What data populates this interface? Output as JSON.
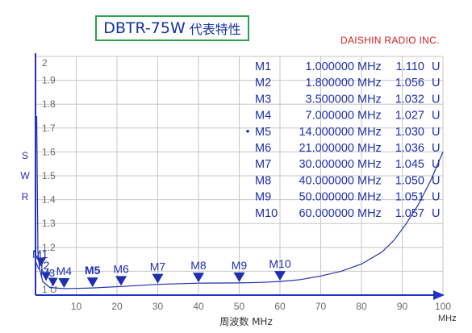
{
  "title": {
    "model": "DBTR-75W",
    "subtitle": "代表特性"
  },
  "company": "DAISHIN RADIO INC.",
  "chart_data": {
    "type": "line",
    "ylabel": [
      "S",
      "W",
      "R"
    ],
    "xlabel": "周波数 MHz",
    "x_unit": "MHz",
    "xlim": [
      0,
      100
    ],
    "ylim": [
      1.0,
      2.0
    ],
    "x_ticks": [
      "10",
      "20",
      "30",
      "40",
      "50",
      "60",
      "70",
      "80",
      "90",
      "100"
    ],
    "y_ticks": [
      "1.9",
      "1.8",
      "1.7",
      "1.6",
      "1.5",
      "1.4",
      "1.3",
      "1.2"
    ],
    "y_top_label": "2",
    "y_bottom_label": "1 U",
    "grid": true,
    "series": [
      {
        "x": [
          0.3,
          0.6,
          1,
          1.8,
          3.5,
          7,
          10,
          14,
          21,
          30,
          40,
          50,
          55,
          60,
          65,
          70,
          75,
          80,
          85,
          88,
          91,
          94,
          97,
          100
        ],
        "y": [
          1.75,
          1.18,
          1.11,
          1.056,
          1.032,
          1.027,
          1.028,
          1.03,
          1.036,
          1.045,
          1.05,
          1.051,
          1.053,
          1.057,
          1.065,
          1.08,
          1.1,
          1.13,
          1.18,
          1.23,
          1.3,
          1.38,
          1.48,
          1.6
        ]
      }
    ],
    "markers": [
      {
        "name": "M1",
        "freq": "1.000000",
        "unit": "MHz",
        "swr": "1.110",
        "swr_unit": "U",
        "x": 1.0,
        "y": 1.11,
        "active": false
      },
      {
        "name": "M2",
        "freq": "1.800000",
        "unit": "MHz",
        "swr": "1.056",
        "swr_unit": "U",
        "x": 1.8,
        "y": 1.056,
        "active": false
      },
      {
        "name": "M3",
        "freq": "3.500000",
        "unit": "MHz",
        "swr": "1.032",
        "swr_unit": "U",
        "x": 3.5,
        "y": 1.032,
        "active": false
      },
      {
        "name": "M4",
        "freq": "7.000000",
        "unit": "MHz",
        "swr": "1.027",
        "swr_unit": "U",
        "x": 7.0,
        "y": 1.027,
        "active": false
      },
      {
        "name": "M5",
        "freq": "14.000000",
        "unit": "MHz",
        "swr": "1.030",
        "swr_unit": "U",
        "x": 14.0,
        "y": 1.03,
        "active": true
      },
      {
        "name": "M6",
        "freq": "21.000000",
        "unit": "MHz",
        "swr": "1.036",
        "swr_unit": "U",
        "x": 21.0,
        "y": 1.036,
        "active": false
      },
      {
        "name": "M7",
        "freq": "30.000000",
        "unit": "MHz",
        "swr": "1.045",
        "swr_unit": "U",
        "x": 30.0,
        "y": 1.045,
        "active": false
      },
      {
        "name": "M8",
        "freq": "40.000000",
        "unit": "MHz",
        "swr": "1.050",
        "swr_unit": "U",
        "x": 40.0,
        "y": 1.05,
        "active": false
      },
      {
        "name": "M9",
        "freq": "50.000000",
        "unit": "MHz",
        "swr": "1.051",
        "swr_unit": "U",
        "x": 50.0,
        "y": 1.051,
        "active": false
      },
      {
        "name": "M10",
        "freq": "60.000000",
        "unit": "MHz",
        "swr": "1.057",
        "swr_unit": "U",
        "x": 60.0,
        "y": 1.057,
        "active": false
      }
    ]
  },
  "colors": {
    "trace": "#1f2fb0",
    "axis": "#2233cc",
    "grid": "#c6c6c6",
    "tick_label": "#6a6a6a",
    "title_border": "#2aa44a",
    "company": "#d02020"
  }
}
